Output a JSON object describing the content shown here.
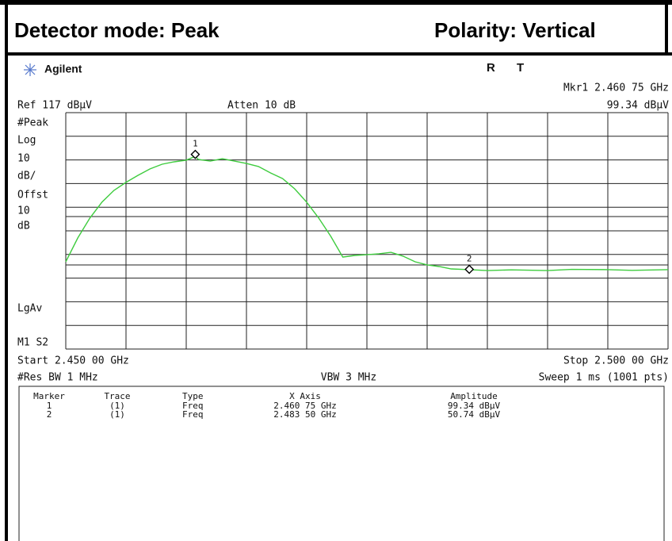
{
  "header": {
    "detector": "Detector mode: Peak",
    "polarity": "Polarity: Vertical"
  },
  "analyzer": {
    "brand": "Agilent",
    "status_r": "R",
    "status_t": "T",
    "marker_readout_freq": "Mkr1  2.460 75 GHz",
    "marker_readout_amp": "99.34 dBμV",
    "ref_level": "Ref 117 dBμV",
    "atten": "Atten 10 dB",
    "left_labels": [
      "#Peak",
      "Log",
      "10",
      "dB/",
      "Offst",
      "10",
      "dB",
      "LgAv",
      "M1  S2"
    ],
    "start": "Start 2.450 00 GHz",
    "stop": "Stop 2.500 00 GHz",
    "res_bw": "#Res BW 1 MHz",
    "vbw": "VBW 3 MHz",
    "sweep": "Sweep 1 ms (1001 pts)"
  },
  "chart_data": {
    "type": "line",
    "color": "#3fcc3f",
    "xlim": [
      2.45,
      2.5
    ],
    "ylim": [
      17,
      117
    ],
    "x": [
      2.45,
      2.451,
      2.452,
      2.453,
      2.454,
      2.455,
      2.456,
      2.457,
      2.458,
      2.459,
      2.46,
      2.46075,
      2.461,
      2.462,
      2.463,
      2.464,
      2.465,
      2.466,
      2.467,
      2.468,
      2.469,
      2.47,
      2.471,
      2.472,
      2.473,
      2.474,
      2.475,
      2.476,
      2.477,
      2.478,
      2.479,
      2.48,
      2.481,
      2.482,
      2.4835,
      2.485,
      2.487,
      2.49,
      2.492,
      2.495,
      2.497,
      2.5
    ],
    "values": [
      53.9,
      64.0,
      72.4,
      79.1,
      84.1,
      87.5,
      90.5,
      93.2,
      95.2,
      96.2,
      96.9,
      98.5,
      97.2,
      96.5,
      97.5,
      96.5,
      95.5,
      94.2,
      91.5,
      89.1,
      84.8,
      79.1,
      72.4,
      64.7,
      55.9,
      56.6,
      56.9,
      57.3,
      57.9,
      56.3,
      53.9,
      52.6,
      51.9,
      50.9,
      50.6,
      50.2,
      50.5,
      50.2,
      50.7,
      50.6,
      50.3,
      50.6
    ],
    "markers": [
      {
        "label": "1",
        "x": 2.46075,
        "value": 99.34
      },
      {
        "label": "2",
        "x": 2.4835,
        "value": 50.74
      }
    ]
  },
  "table": {
    "headers": [
      "Marker",
      "Trace",
      "Type",
      "X Axis",
      "Amplitude"
    ],
    "rows": [
      [
        "1",
        "(1)",
        "Freq",
        "2.460 75 GHz",
        "99.34 dBμV"
      ],
      [
        "2",
        "(1)",
        "Freq",
        "2.483 50 GHz",
        "50.74 dBμV"
      ]
    ]
  }
}
